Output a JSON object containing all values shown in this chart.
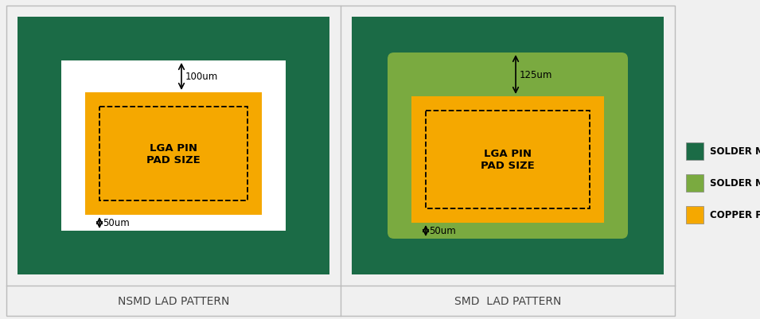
{
  "bg_color": "#f0f0f0",
  "panel_bg": "#f0f0f0",
  "dark_green": "#1b6b46",
  "light_green": "#7aaa40",
  "orange": "#f5a800",
  "white": "#ffffff",
  "border_color": "#bbbbbb",
  "label_color": "#444444",
  "panel1_label": "NSMD LAD PATTERN",
  "panel2_label": "SMD  LAD PATTERN",
  "legend_items": [
    {
      "label": "SOLDER MASK ON BT",
      "color": "#1b6b46"
    },
    {
      "label": "SOLDER MASK ON COPPER",
      "color": "#7aaa40"
    },
    {
      "label": "COPPER PAD",
      "color": "#f5a800"
    }
  ],
  "dim1_label": "100um",
  "dim2_label": "125um",
  "dim3_label": "50um",
  "dim4_label": "50um",
  "pad_label": "LGA PIN\nPAD SIZE",
  "fig_w": 9.55,
  "fig_h": 4.02
}
